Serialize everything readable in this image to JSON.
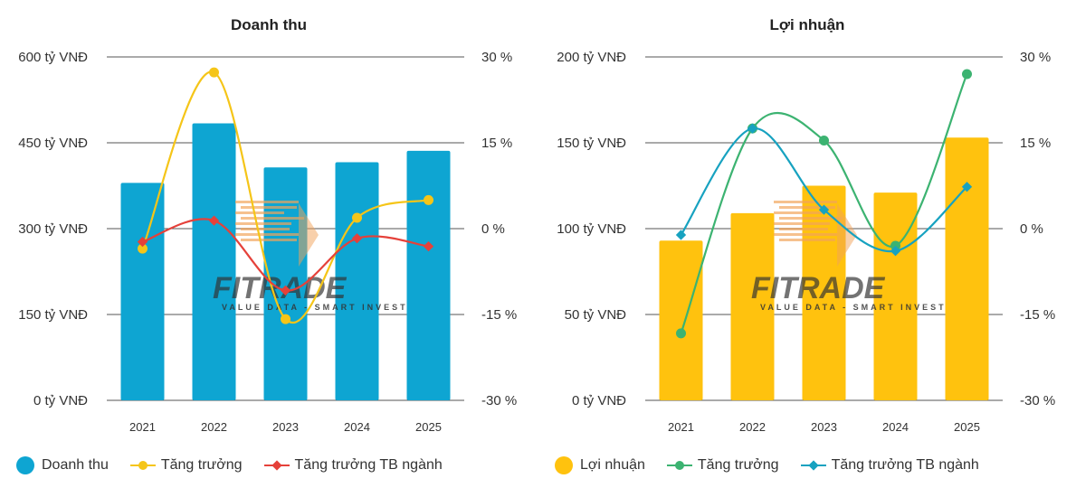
{
  "colors": {
    "revenue_bar": "#0ea5d2",
    "revenue_growth": "#f5c518",
    "revenue_industry": "#e5413a",
    "profit_bar": "#ffc20e",
    "profit_growth": "#3cb371",
    "profit_industry": "#17a2c0",
    "gridline": "#555555",
    "watermark_orange": "#f2a45a",
    "watermark_green": "#7ac142"
  },
  "watermark": {
    "brand": "FITRADE",
    "tagline": "VALUE DATA - SMART INVEST"
  },
  "chart_data": [
    {
      "type": "bar",
      "title": "Doanh thu",
      "categories": [
        "2021",
        "2022",
        "2023",
        "2024",
        "2025"
      ],
      "ylim": [
        0,
        600
      ],
      "y_ticks": [
        "600 tỷ VNĐ",
        "450 tỷ VNĐ",
        "300 tỷ VNĐ",
        "150 tỷ VNĐ",
        "0 tỷ VNĐ"
      ],
      "y2lim": [
        -30,
        30
      ],
      "y2_ticks": [
        "30 %",
        "15 %",
        "0 %",
        "-15 %",
        "-30 %"
      ],
      "grid": true,
      "legend_position": "bottom-left",
      "series": [
        {
          "name": "Doanh thu",
          "kind": "bar",
          "axis": "left",
          "values": [
            380,
            484,
            407,
            416,
            436
          ]
        },
        {
          "name": "Tăng trưởng",
          "kind": "line",
          "axis": "right",
          "marker": "circle",
          "values": [
            -3.5,
            27.3,
            -15.8,
            1.9,
            5.0
          ]
        },
        {
          "name": "Tăng trưởng TB ngành",
          "kind": "line",
          "axis": "right",
          "marker": "diamond",
          "values": [
            -2.3,
            1.4,
            -10.8,
            -1.7,
            -3.1
          ]
        }
      ]
    },
    {
      "type": "bar",
      "title": "Lợi nhuận",
      "categories": [
        "2021",
        "2022",
        "2023",
        "2024",
        "2025"
      ],
      "ylim": [
        0,
        200
      ],
      "y_ticks": [
        "200 tỷ VNĐ",
        "150 tỷ VNĐ",
        "100 tỷ VNĐ",
        "50 tỷ VNĐ",
        "0 tỷ VNĐ"
      ],
      "y2lim": [
        -30,
        30
      ],
      "y2_ticks": [
        "30 %",
        "15 %",
        "0 %",
        "-15 %",
        "-30 %"
      ],
      "grid": true,
      "legend_position": "bottom-left",
      "series": [
        {
          "name": "Lợi nhuận",
          "kind": "bar",
          "axis": "left",
          "values": [
            93,
            109,
            125,
            121,
            153
          ]
        },
        {
          "name": "Tăng trưởng",
          "kind": "line",
          "axis": "right",
          "marker": "circle",
          "values": [
            -18.3,
            17.5,
            15.4,
            -3.0,
            27.0
          ]
        },
        {
          "name": "Tăng trưởng TB ngành",
          "kind": "line",
          "axis": "right",
          "marker": "diamond",
          "values": [
            -1.1,
            17.5,
            3.3,
            -3.9,
            7.3
          ]
        }
      ]
    }
  ]
}
